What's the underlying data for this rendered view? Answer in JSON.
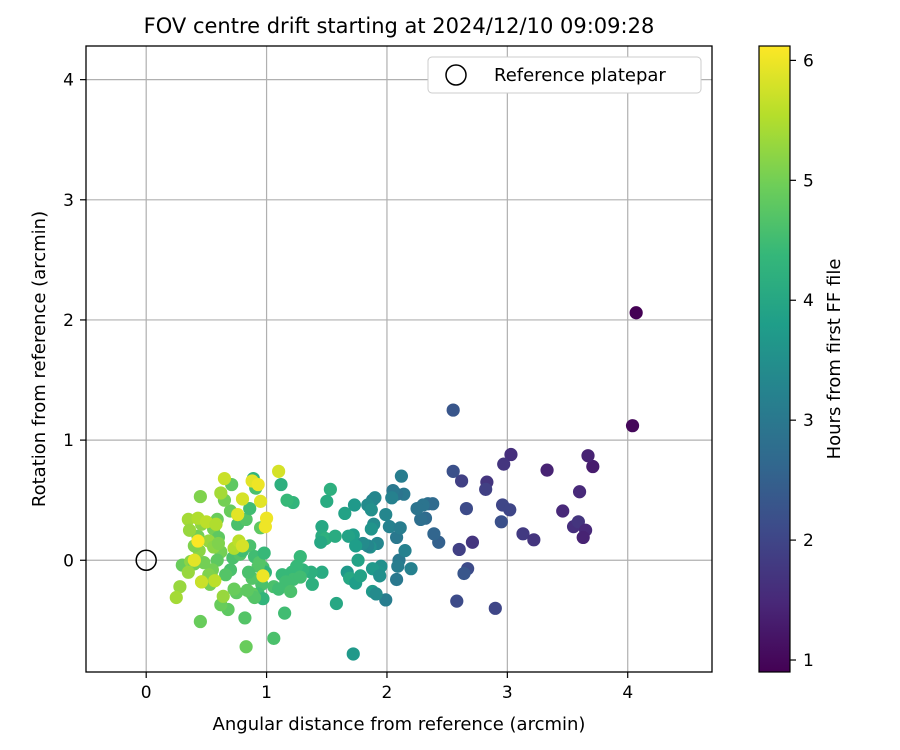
{
  "chart_data": {
    "type": "scatter",
    "title": "FOV centre drift starting at 2024/12/10 09:09:28",
    "xlabel": "Angular distance from reference (arcmin)",
    "ylabel": "Rotation from reference (arcmin)",
    "xlim": [
      -0.5,
      4.7
    ],
    "ylim": [
      -0.93,
      4.28
    ],
    "xticks": [
      "0",
      "1",
      "2",
      "3",
      "4"
    ],
    "yticks": [
      "0",
      "1",
      "2",
      "3",
      "4"
    ],
    "grid": true,
    "legend": {
      "position": "top-right",
      "entries": [
        "Reference platepar"
      ]
    },
    "reference_point": {
      "x": 0,
      "y": 0,
      "label": "Reference platepar"
    },
    "colorbar": {
      "label": "Hours from first FF file",
      "range": [
        0.9,
        6.12
      ],
      "ticks": [
        "1",
        "2",
        "3",
        "4",
        "5",
        "6"
      ],
      "colormap": "viridis",
      "colormap_stops": [
        "#440154",
        "#482878",
        "#3e4989",
        "#31688e",
        "#26828e",
        "#1f9e89",
        "#35b779",
        "#6ece58",
        "#b5de2b",
        "#fde725"
      ]
    },
    "points": [
      {
        "x": 4.07,
        "y": 2.06,
        "h": 0.9
      },
      {
        "x": 4.04,
        "y": 1.12,
        "h": 1.0
      },
      {
        "x": 3.71,
        "y": 0.78,
        "h": 1.3
      },
      {
        "x": 3.67,
        "y": 0.87,
        "h": 1.4
      },
      {
        "x": 3.6,
        "y": 0.57,
        "h": 1.5
      },
      {
        "x": 3.33,
        "y": 0.75,
        "h": 1.4
      },
      {
        "x": 3.03,
        "y": 0.88,
        "h": 1.6
      },
      {
        "x": 2.97,
        "y": 0.8,
        "h": 1.7
      },
      {
        "x": 3.46,
        "y": 0.41,
        "h": 1.5
      },
      {
        "x": 3.55,
        "y": 0.28,
        "h": 1.6
      },
      {
        "x": 3.59,
        "y": 0.32,
        "h": 1.7
      },
      {
        "x": 3.65,
        "y": 0.25,
        "h": 1.5
      },
      {
        "x": 3.63,
        "y": 0.19,
        "h": 1.4
      },
      {
        "x": 3.13,
        "y": 0.22,
        "h": 1.8
      },
      {
        "x": 3.22,
        "y": 0.17,
        "h": 1.7
      },
      {
        "x": 2.83,
        "y": 0.65,
        "h": 1.7
      },
      {
        "x": 2.82,
        "y": 0.59,
        "h": 1.9
      },
      {
        "x": 2.96,
        "y": 0.46,
        "h": 2.0
      },
      {
        "x": 3.02,
        "y": 0.42,
        "h": 2.0
      },
      {
        "x": 2.95,
        "y": 0.32,
        "h": 2.2
      },
      {
        "x": 2.62,
        "y": 0.66,
        "h": 1.9
      },
      {
        "x": 2.55,
        "y": 0.74,
        "h": 2.2
      },
      {
        "x": 2.55,
        "y": 1.25,
        "h": 2.3
      },
      {
        "x": 2.66,
        "y": 0.43,
        "h": 2.1
      },
      {
        "x": 2.71,
        "y": 0.15,
        "h": 1.7
      },
      {
        "x": 2.6,
        "y": 0.09,
        "h": 1.9
      },
      {
        "x": 2.67,
        "y": -0.07,
        "h": 2.1
      },
      {
        "x": 2.64,
        "y": -0.11,
        "h": 2.3
      },
      {
        "x": 2.58,
        "y": -0.34,
        "h": 2.1
      },
      {
        "x": 2.9,
        "y": -0.4,
        "h": 2.0
      },
      {
        "x": 2.43,
        "y": 0.15,
        "h": 2.5
      },
      {
        "x": 2.39,
        "y": 0.22,
        "h": 2.6
      },
      {
        "x": 2.34,
        "y": 0.47,
        "h": 2.8
      },
      {
        "x": 2.38,
        "y": 0.47,
        "h": 2.7
      },
      {
        "x": 2.3,
        "y": 0.46,
        "h": 2.9
      },
      {
        "x": 2.32,
        "y": 0.35,
        "h": 2.7
      },
      {
        "x": 2.28,
        "y": 0.34,
        "h": 2.8
      },
      {
        "x": 2.25,
        "y": 0.43,
        "h": 2.9
      },
      {
        "x": 2.12,
        "y": 0.7,
        "h": 3.1
      },
      {
        "x": 2.14,
        "y": 0.55,
        "h": 3.0
      },
      {
        "x": 2.08,
        "y": 0.55,
        "h": 2.9
      },
      {
        "x": 2.05,
        "y": 0.58,
        "h": 3.0
      },
      {
        "x": 2.04,
        "y": 0.52,
        "h": 3.2
      },
      {
        "x": 1.99,
        "y": 0.38,
        "h": 3.3
      },
      {
        "x": 2.02,
        "y": 0.28,
        "h": 3.2
      },
      {
        "x": 2.08,
        "y": 0.19,
        "h": 3.0
      },
      {
        "x": 2.11,
        "y": 0.27,
        "h": 3.1
      },
      {
        "x": 2.1,
        "y": 0.0,
        "h": 3.0
      },
      {
        "x": 2.09,
        "y": -0.05,
        "h": 3.1
      },
      {
        "x": 2.15,
        "y": 0.08,
        "h": 3.2
      },
      {
        "x": 2.2,
        "y": -0.07,
        "h": 3.2
      },
      {
        "x": 2.08,
        "y": -0.16,
        "h": 3.0
      },
      {
        "x": 1.99,
        "y": -0.33,
        "h": 3.1
      },
      {
        "x": 1.88,
        "y": 0.5,
        "h": 3.2
      },
      {
        "x": 1.9,
        "y": 0.52,
        "h": 3.3
      },
      {
        "x": 1.84,
        "y": 0.46,
        "h": 3.4
      },
      {
        "x": 1.87,
        "y": 0.42,
        "h": 3.5
      },
      {
        "x": 1.89,
        "y": 0.3,
        "h": 3.4
      },
      {
        "x": 1.87,
        "y": 0.26,
        "h": 3.6
      },
      {
        "x": 1.92,
        "y": 0.14,
        "h": 3.3
      },
      {
        "x": 1.86,
        "y": 0.11,
        "h": 3.5
      },
      {
        "x": 1.84,
        "y": 0.12,
        "h": 3.3
      },
      {
        "x": 1.8,
        "y": 0.14,
        "h": 3.4
      },
      {
        "x": 1.95,
        "y": -0.05,
        "h": 3.5
      },
      {
        "x": 1.93,
        "y": -0.1,
        "h": 3.6
      },
      {
        "x": 1.88,
        "y": -0.07,
        "h": 3.7
      },
      {
        "x": 1.94,
        "y": -0.13,
        "h": 3.5
      },
      {
        "x": 1.88,
        "y": -0.26,
        "h": 3.7
      },
      {
        "x": 1.91,
        "y": -0.28,
        "h": 3.4
      },
      {
        "x": 1.73,
        "y": 0.46,
        "h": 3.7
      },
      {
        "x": 1.65,
        "y": 0.39,
        "h": 3.9
      },
      {
        "x": 1.72,
        "y": 0.21,
        "h": 3.8
      },
      {
        "x": 1.68,
        "y": 0.2,
        "h": 3.9
      },
      {
        "x": 1.74,
        "y": 0.12,
        "h": 3.8
      },
      {
        "x": 1.76,
        "y": 0.0,
        "h": 3.9
      },
      {
        "x": 1.67,
        "y": -0.1,
        "h": 3.7
      },
      {
        "x": 1.69,
        "y": -0.15,
        "h": 4.0
      },
      {
        "x": 1.74,
        "y": -0.19,
        "h": 3.8
      },
      {
        "x": 1.78,
        "y": -0.13,
        "h": 3.9
      },
      {
        "x": 1.72,
        "y": -0.78,
        "h": 3.7
      },
      {
        "x": 1.58,
        "y": -0.36,
        "h": 4.0
      },
      {
        "x": 1.53,
        "y": 0.59,
        "h": 4.2
      },
      {
        "x": 1.5,
        "y": 0.49,
        "h": 4.1
      },
      {
        "x": 1.46,
        "y": 0.28,
        "h": 4.0
      },
      {
        "x": 1.46,
        "y": 0.2,
        "h": 4.1
      },
      {
        "x": 1.49,
        "y": 0.18,
        "h": 4.2
      },
      {
        "x": 1.45,
        "y": 0.15,
        "h": 4.0
      },
      {
        "x": 1.57,
        "y": 0.2,
        "h": 4.1
      },
      {
        "x": 1.46,
        "y": -0.1,
        "h": 4.1
      },
      {
        "x": 1.37,
        "y": -0.1,
        "h": 4.2
      },
      {
        "x": 1.38,
        "y": -0.2,
        "h": 4.2
      },
      {
        "x": 1.3,
        "y": -0.08,
        "h": 4.3
      },
      {
        "x": 1.22,
        "y": 0.48,
        "h": 4.3
      },
      {
        "x": 1.17,
        "y": 0.5,
        "h": 4.4
      },
      {
        "x": 1.12,
        "y": 0.63,
        "h": 4.2
      },
      {
        "x": 1.28,
        "y": 0.03,
        "h": 4.4
      },
      {
        "x": 1.25,
        "y": -0.05,
        "h": 4.4
      },
      {
        "x": 1.21,
        "y": -0.1,
        "h": 4.4
      },
      {
        "x": 1.22,
        "y": -0.16,
        "h": 4.5
      },
      {
        "x": 1.28,
        "y": -0.14,
        "h": 4.5
      },
      {
        "x": 1.13,
        "y": -0.12,
        "h": 4.4
      },
      {
        "x": 1.16,
        "y": -0.18,
        "h": 4.5
      },
      {
        "x": 1.06,
        "y": -0.22,
        "h": 4.6
      },
      {
        "x": 1.1,
        "y": -0.24,
        "h": 4.5
      },
      {
        "x": 1.2,
        "y": -0.26,
        "h": 4.6
      },
      {
        "x": 1.15,
        "y": -0.44,
        "h": 4.5
      },
      {
        "x": 1.06,
        "y": -0.65,
        "h": 4.6
      },
      {
        "x": 0.97,
        "y": -0.06,
        "h": 4.6
      },
      {
        "x": 0.99,
        "y": -0.1,
        "h": 4.3
      },
      {
        "x": 0.93,
        "y": -0.05,
        "h": 4.7
      },
      {
        "x": 0.96,
        "y": -0.2,
        "h": 4.6
      },
      {
        "x": 0.93,
        "y": -0.28,
        "h": 4.5
      },
      {
        "x": 0.97,
        "y": -0.32,
        "h": 4.3
      },
      {
        "x": 0.88,
        "y": -0.15,
        "h": 4.7
      },
      {
        "x": 0.85,
        "y": -0.1,
        "h": 4.6
      },
      {
        "x": 0.88,
        "y": -0.28,
        "h": 4.8
      },
      {
        "x": 0.9,
        "y": -0.31,
        "h": 4.7
      },
      {
        "x": 0.84,
        "y": -0.25,
        "h": 4.8
      },
      {
        "x": 0.82,
        "y": -0.48,
        "h": 4.7
      },
      {
        "x": 0.83,
        "y": -0.72,
        "h": 4.9
      },
      {
        "x": 0.75,
        "y": -0.27,
        "h": 4.8
      },
      {
        "x": 0.73,
        "y": -0.24,
        "h": 4.9
      },
      {
        "x": 0.68,
        "y": -0.41,
        "h": 4.8
      },
      {
        "x": 0.62,
        "y": -0.37,
        "h": 4.9
      },
      {
        "x": 0.7,
        "y": -0.08,
        "h": 4.6
      },
      {
        "x": 0.66,
        "y": -0.12,
        "h": 4.7
      },
      {
        "x": 0.72,
        "y": 0.02,
        "h": 4.6
      },
      {
        "x": 0.78,
        "y": 0.05,
        "h": 4.7
      },
      {
        "x": 0.8,
        "y": 0.08,
        "h": 4.5
      },
      {
        "x": 0.86,
        "y": 0.12,
        "h": 4.6
      },
      {
        "x": 0.9,
        "y": 0.03,
        "h": 4.5
      },
      {
        "x": 0.94,
        "y": -0.02,
        "h": 4.7
      },
      {
        "x": 0.98,
        "y": 0.06,
        "h": 4.4
      },
      {
        "x": 0.76,
        "y": 0.3,
        "h": 4.6
      },
      {
        "x": 0.83,
        "y": 0.34,
        "h": 4.7
      },
      {
        "x": 0.86,
        "y": 0.43,
        "h": 4.5
      },
      {
        "x": 0.89,
        "y": 0.68,
        "h": 4.3
      },
      {
        "x": 0.91,
        "y": 0.6,
        "h": 4.6
      },
      {
        "x": 0.95,
        "y": 0.27,
        "h": 4.8
      },
      {
        "x": 0.7,
        "y": 0.41,
        "h": 4.9
      },
      {
        "x": 0.71,
        "y": 0.63,
        "h": 4.8
      },
      {
        "x": 0.65,
        "y": 0.5,
        "h": 5.0
      },
      {
        "x": 0.59,
        "y": 0.34,
        "h": 4.9
      },
      {
        "x": 0.56,
        "y": 0.26,
        "h": 5.0
      },
      {
        "x": 0.6,
        "y": 0.19,
        "h": 4.8
      },
      {
        "x": 0.62,
        "y": 0.07,
        "h": 5.0
      },
      {
        "x": 0.59,
        "y": 0.0,
        "h": 4.8
      },
      {
        "x": 0.55,
        "y": -0.08,
        "h": 5.0
      },
      {
        "x": 0.52,
        "y": -0.12,
        "h": 5.1
      },
      {
        "x": 0.48,
        "y": -0.02,
        "h": 5.0
      },
      {
        "x": 0.44,
        "y": 0.08,
        "h": 5.2
      },
      {
        "x": 0.4,
        "y": 0.12,
        "h": 5.1
      },
      {
        "x": 0.43,
        "y": 0.2,
        "h": 5.0
      },
      {
        "x": 0.46,
        "y": 0.3,
        "h": 5.2
      },
      {
        "x": 0.45,
        "y": 0.53,
        "h": 5.1
      },
      {
        "x": 0.52,
        "y": 0.16,
        "h": 5.3
      },
      {
        "x": 0.56,
        "y": 0.11,
        "h": 5.2
      },
      {
        "x": 0.6,
        "y": 0.14,
        "h": 5.1
      },
      {
        "x": 0.3,
        "y": -0.04,
        "h": 4.9
      },
      {
        "x": 0.37,
        "y": -0.01,
        "h": 5.2
      },
      {
        "x": 0.4,
        "y": -0.03,
        "h": 5.0
      },
      {
        "x": 0.35,
        "y": -0.1,
        "h": 5.3
      },
      {
        "x": 0.46,
        "y": -0.18,
        "h": 5.3
      },
      {
        "x": 0.53,
        "y": -0.2,
        "h": 5.0
      },
      {
        "x": 0.55,
        "y": -0.15,
        "h": 5.1
      },
      {
        "x": 0.45,
        "y": -0.51,
        "h": 4.9
      },
      {
        "x": 0.28,
        "y": -0.22,
        "h": 5.3
      },
      {
        "x": 0.25,
        "y": -0.31,
        "h": 5.4
      },
      {
        "x": 0.35,
        "y": 0.34,
        "h": 5.4
      },
      {
        "x": 0.36,
        "y": 0.25,
        "h": 5.3
      },
      {
        "x": 0.43,
        "y": 0.35,
        "h": 5.5
      },
      {
        "x": 0.5,
        "y": 0.32,
        "h": 5.6
      },
      {
        "x": 0.58,
        "y": 0.3,
        "h": 5.5
      },
      {
        "x": 0.62,
        "y": 0.56,
        "h": 5.4
      },
      {
        "x": 0.65,
        "y": 0.68,
        "h": 5.7
      },
      {
        "x": 0.73,
        "y": 0.1,
        "h": 5.5
      },
      {
        "x": 0.77,
        "y": 0.16,
        "h": 5.6
      },
      {
        "x": 0.8,
        "y": 0.12,
        "h": 5.8
      },
      {
        "x": 0.76,
        "y": 0.38,
        "h": 5.9
      },
      {
        "x": 0.8,
        "y": 0.51,
        "h": 5.8
      },
      {
        "x": 0.88,
        "y": 0.66,
        "h": 5.9
      },
      {
        "x": 0.93,
        "y": 0.63,
        "h": 6.0
      },
      {
        "x": 0.95,
        "y": 0.49,
        "h": 5.9
      },
      {
        "x": 0.99,
        "y": 0.28,
        "h": 6.0
      },
      {
        "x": 1.0,
        "y": 0.35,
        "h": 6.0
      },
      {
        "x": 1.1,
        "y": 0.74,
        "h": 5.8
      },
      {
        "x": 0.97,
        "y": -0.13,
        "h": 6.0
      },
      {
        "x": 0.43,
        "y": 0.16,
        "h": 6.1
      },
      {
        "x": 0.4,
        "y": 0.0,
        "h": 5.9
      },
      {
        "x": 0.46,
        "y": -0.18,
        "h": 5.7
      },
      {
        "x": 0.57,
        "y": -0.17,
        "h": 5.6
      },
      {
        "x": 0.64,
        "y": -0.3,
        "h": 5.3
      }
    ]
  }
}
